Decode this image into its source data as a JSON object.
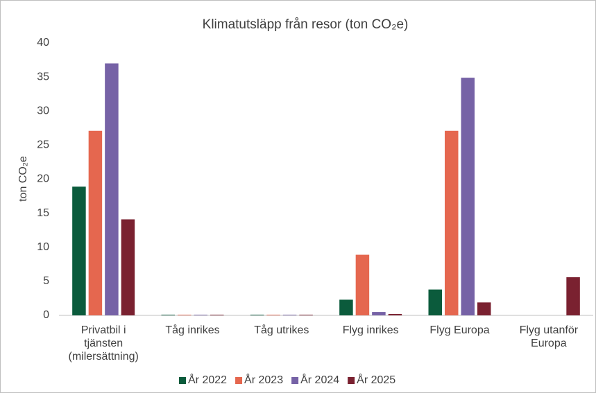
{
  "chart_data": {
    "type": "bar",
    "title": "Klimatutsläpp från resor (ton CO₂e)",
    "y_label": "ton CO₂e",
    "categories": [
      "Privatbil i tjänsten (milersättning)",
      "Tåg inrikes",
      "Tåg utrikes",
      "Flyg inrikes",
      "Flyg Europa",
      "Flyg utanför Europa"
    ],
    "series": [
      {
        "name": "År 2022",
        "color": "#0b5b3c",
        "values": [
          18.9,
          0.1,
          0.1,
          2.3,
          3.8,
          0
        ]
      },
      {
        "name": "År 2023",
        "color": "#e5674f",
        "values": [
          27.1,
          0.1,
          0.1,
          8.9,
          27.1,
          0
        ]
      },
      {
        "name": "År 2024",
        "color": "#7662a6",
        "values": [
          37,
          0.1,
          0.1,
          0.5,
          34.9,
          0
        ]
      },
      {
        "name": "År 2025",
        "color": "#7a2130",
        "values": [
          14.1,
          0.1,
          0.1,
          0.2,
          1.9,
          5.6
        ]
      }
    ],
    "ylim": [
      0,
      40
    ],
    "yticks": [
      0,
      5,
      10,
      15,
      20,
      25,
      30,
      35,
      40
    ],
    "grid": false,
    "legend": "bottom"
  }
}
